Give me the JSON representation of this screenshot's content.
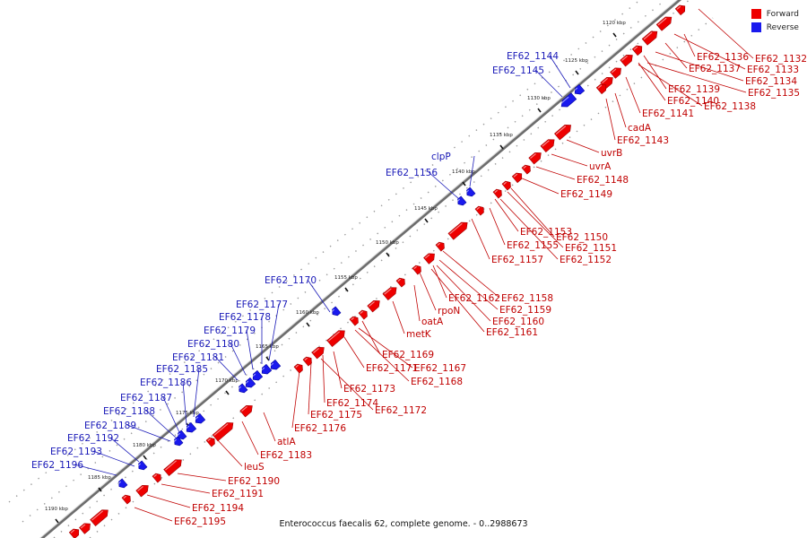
{
  "legend": {
    "forward_label": "Forward",
    "reverse_label": "Reverse",
    "forward_color": "#ee0000",
    "reverse_color": "#1a1aee"
  },
  "caption": "Enterococcus faecalis 62, complete genome. - 0..2988673",
  "kbp_ticks": [
    "1120 kbp",
    "1125 kbp",
    "1130 kbp",
    "1135 kbp",
    "1140 kbp",
    "1145 kbp",
    "1150 kbp",
    "1155 kbp",
    "1160 kbp",
    "1165 kbp",
    "1170 kbp",
    "1175 kbp",
    "1180 kbp",
    "1185 kbp",
    "1190 kbp"
  ],
  "genes_forward": [
    "EF62_1132",
    "EF62_1136",
    "EF62_1133",
    "EF62_1137",
    "EF62_1134",
    "EF62_1135",
    "EF62_1139",
    "EF62_1140",
    "EF62_1138",
    "EF62_1141",
    "cadA",
    "EF62_1143",
    "uvrB",
    "uvrA",
    "EF62_1148",
    "EF62_1149",
    "EF62_1150",
    "EF62_1153",
    "EF62_1151",
    "EF62_1155",
    "EF62_1152",
    "EF62_1157",
    "EF62_1162",
    "EF62_1158",
    "rpoN",
    "EF62_1159",
    "EF62_1160",
    "oatA",
    "EF62_1161",
    "metK",
    "EF62_1169",
    "EF62_1171",
    "EF62_1167",
    "EF62_1168",
    "EF62_1173",
    "EF62_1174",
    "EF62_1172",
    "EF62_1175",
    "EF62_1176",
    "atlA",
    "EF62_1183",
    "leuS",
    "EF62_1190",
    "EF62_1191",
    "EF62_1194",
    "EF62_1195"
  ],
  "genes_reverse": [
    "EF62_1144",
    "EF62_1145",
    "clpP",
    "EF62_1156",
    "EF62_1170",
    "EF62_1177",
    "EF62_1178",
    "EF62_1179",
    "EF62_1180",
    "EF62_1181",
    "EF62_1185",
    "EF62_1186",
    "EF62_1187",
    "EF62_1188",
    "EF62_1189",
    "EF62_1192",
    "EF62_1193",
    "EF62_1196"
  ]
}
